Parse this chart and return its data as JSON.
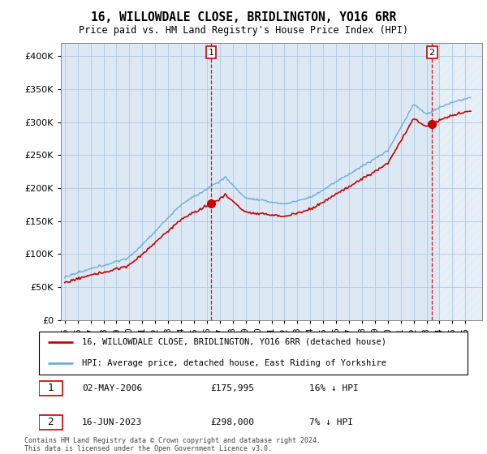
{
  "title": "16, WILLOWDALE CLOSE, BRIDLINGTON, YO16 6RR",
  "subtitle": "Price paid vs. HM Land Registry's House Price Index (HPI)",
  "hpi_label": "HPI: Average price, detached house, East Riding of Yorkshire",
  "property_label": "16, WILLOWDALE CLOSE, BRIDLINGTON, YO16 6RR (detached house)",
  "sale1_date": "02-MAY-2006",
  "sale1_price": 175995,
  "sale1_hpi": "16% ↓ HPI",
  "sale2_date": "16-JUN-2023",
  "sale2_price": 298000,
  "sale2_hpi": "7% ↓ HPI",
  "footnote": "Contains HM Land Registry data © Crown copyright and database right 2024.\nThis data is licensed under the Open Government Licence v3.0.",
  "hpi_color": "#6baed6",
  "property_color": "#cc0000",
  "background_color": "#FFFFFF",
  "plot_bg_color": "#dce9f5",
  "grid_color": "#b0c8e0",
  "ylim": [
    0,
    420000
  ],
  "yticks": [
    0,
    50000,
    100000,
    150000,
    200000,
    250000,
    300000,
    350000,
    400000
  ],
  "x_start_year": 1995,
  "x_end_year": 2027
}
